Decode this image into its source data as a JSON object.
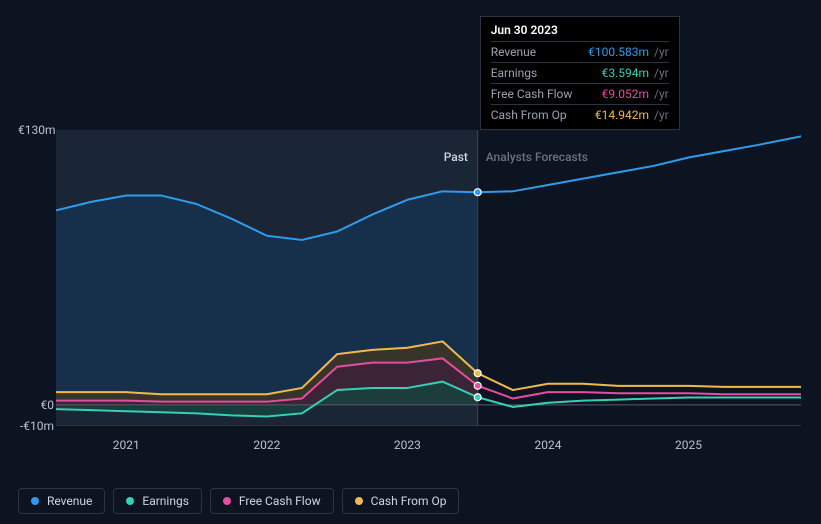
{
  "chart": {
    "type": "area-line",
    "background_color": "#0d1421",
    "past_fill": "#1a2535",
    "forecast_fill": "#0d1421",
    "divider_color": "#3a4452",
    "grid_color": "#2a3442",
    "baseline_color": "#555d6a",
    "section_labels": {
      "past": "Past",
      "forecast": "Analysts Forecasts"
    },
    "y_axis": {
      "min": -10,
      "max": 130,
      "unit_prefix": "€",
      "unit_suffix": "m",
      "ticks": [
        {
          "value": 130,
          "label": "€130m"
        },
        {
          "value": 0,
          "label": "€0"
        },
        {
          "value": -10,
          "label": "-€10m"
        }
      ],
      "label_fontsize": 12
    },
    "x_axis": {
      "min": 2020.5,
      "max": 2025.8,
      "ticks": [
        2021,
        2022,
        2023,
        2024,
        2025
      ],
      "label_fontsize": 12
    },
    "divider_x": 2023.5,
    "tooltip": {
      "x": 2023.5,
      "title": "Jun 30 2023",
      "unit": "/yr",
      "rows": [
        {
          "label": "Revenue",
          "value": "€100.583m",
          "color": "#2f9ceb"
        },
        {
          "label": "Earnings",
          "value": "€3.594m",
          "color": "#35d0b6"
        },
        {
          "label": "Free Cash Flow",
          "value": "€9.052m",
          "color": "#e54da0"
        },
        {
          "label": "Cash From Op",
          "value": "€14.942m",
          "color": "#f0b94c"
        }
      ]
    },
    "series": [
      {
        "name": "Revenue",
        "color": "#2f9ceb",
        "area_fill_past": "#16314d",
        "area_fill_forecast": "none",
        "line_width": 2,
        "points": [
          [
            2020.5,
            92
          ],
          [
            2020.75,
            96
          ],
          [
            2021,
            99
          ],
          [
            2021.25,
            99
          ],
          [
            2021.5,
            95
          ],
          [
            2021.75,
            88
          ],
          [
            2022,
            80
          ],
          [
            2022.25,
            78
          ],
          [
            2022.5,
            82
          ],
          [
            2022.75,
            90
          ],
          [
            2023,
            97
          ],
          [
            2023.25,
            101
          ],
          [
            2023.5,
            100.583
          ],
          [
            2023.75,
            101
          ],
          [
            2024,
            104
          ],
          [
            2024.25,
            107
          ],
          [
            2024.5,
            110
          ],
          [
            2024.75,
            113
          ],
          [
            2025,
            117
          ],
          [
            2025.25,
            120
          ],
          [
            2025.5,
            123
          ],
          [
            2025.8,
            127
          ]
        ]
      },
      {
        "name": "Cash From Op",
        "color": "#f0b94c",
        "area_fill_past": "#3d3624",
        "area_fill_forecast": "none",
        "line_width": 2,
        "points": [
          [
            2020.5,
            6
          ],
          [
            2020.75,
            6
          ],
          [
            2021,
            6
          ],
          [
            2021.25,
            5
          ],
          [
            2021.5,
            5
          ],
          [
            2021.75,
            5
          ],
          [
            2022,
            5
          ],
          [
            2022.25,
            8
          ],
          [
            2022.5,
            24
          ],
          [
            2022.75,
            26
          ],
          [
            2023,
            27
          ],
          [
            2023.25,
            30
          ],
          [
            2023.5,
            14.942
          ],
          [
            2023.75,
            7
          ],
          [
            2024,
            10
          ],
          [
            2024.25,
            10
          ],
          [
            2024.5,
            9
          ],
          [
            2024.75,
            9
          ],
          [
            2025,
            9
          ],
          [
            2025.25,
            8.5
          ],
          [
            2025.5,
            8.5
          ],
          [
            2025.8,
            8.5
          ]
        ]
      },
      {
        "name": "Free Cash Flow",
        "color": "#e54da0",
        "area_fill_past": "#3d2139",
        "area_fill_forecast": "none",
        "line_width": 2,
        "points": [
          [
            2020.5,
            2
          ],
          [
            2020.75,
            2
          ],
          [
            2021,
            2
          ],
          [
            2021.25,
            1.5
          ],
          [
            2021.5,
            1.5
          ],
          [
            2021.75,
            1.5
          ],
          [
            2022,
            1.5
          ],
          [
            2022.25,
            3
          ],
          [
            2022.5,
            18
          ],
          [
            2022.75,
            20
          ],
          [
            2023,
            20
          ],
          [
            2023.25,
            22
          ],
          [
            2023.5,
            9.052
          ],
          [
            2023.75,
            3
          ],
          [
            2024,
            6
          ],
          [
            2024.25,
            6
          ],
          [
            2024.5,
            5.5
          ],
          [
            2024.75,
            5.5
          ],
          [
            2025,
            5.5
          ],
          [
            2025.25,
            5
          ],
          [
            2025.5,
            5
          ],
          [
            2025.8,
            5
          ]
        ]
      },
      {
        "name": "Earnings",
        "color": "#35d0b6",
        "area_fill_past": "#18423e",
        "area_fill_forecast": "none",
        "line_width": 2,
        "points": [
          [
            2020.5,
            -2
          ],
          [
            2020.75,
            -2.5
          ],
          [
            2021,
            -3
          ],
          [
            2021.25,
            -3.5
          ],
          [
            2021.5,
            -4
          ],
          [
            2021.75,
            -5
          ],
          [
            2022,
            -5.5
          ],
          [
            2022.25,
            -4
          ],
          [
            2022.5,
            7
          ],
          [
            2022.75,
            8
          ],
          [
            2023,
            8
          ],
          [
            2023.25,
            11
          ],
          [
            2023.5,
            3.594
          ],
          [
            2023.75,
            -1
          ],
          [
            2024,
            1
          ],
          [
            2024.25,
            2
          ],
          [
            2024.5,
            2.5
          ],
          [
            2024.75,
            3
          ],
          [
            2025,
            3.5
          ],
          [
            2025.25,
            3.5
          ],
          [
            2025.5,
            3.5
          ],
          [
            2025.8,
            3.5
          ]
        ]
      }
    ],
    "legend": [
      {
        "label": "Revenue",
        "color": "#2f9ceb"
      },
      {
        "label": "Earnings",
        "color": "#35d0b6"
      },
      {
        "label": "Free Cash Flow",
        "color": "#e54da0"
      },
      {
        "label": "Cash From Op",
        "color": "#f0b94c"
      }
    ],
    "marker_radius": 3.5,
    "marker_stroke": "#0d1421"
  }
}
